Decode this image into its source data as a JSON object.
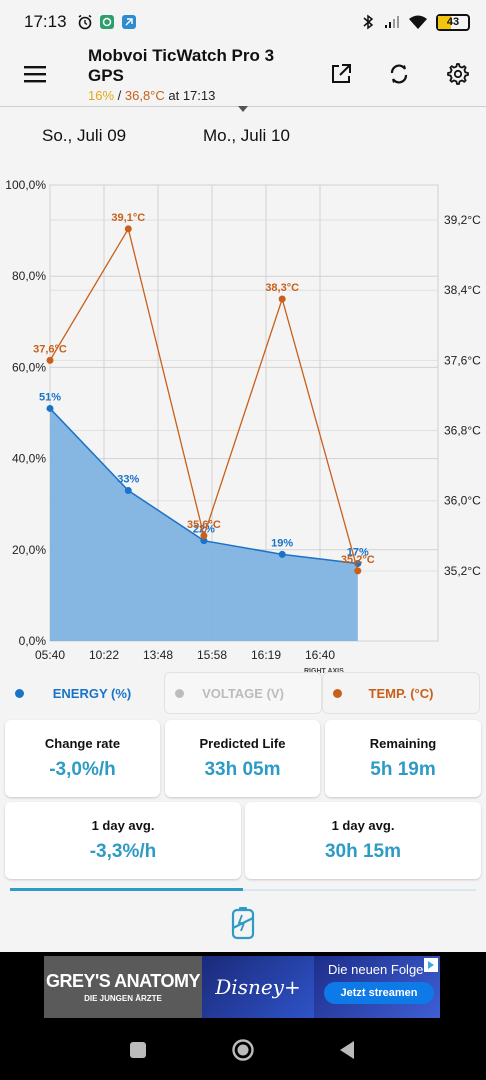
{
  "status_bar": {
    "time": "17:13",
    "battery": "43",
    "battery_fraction": 0.43
  },
  "app_bar": {
    "title": "Mobvoi TicWatch Pro 3 GPS",
    "subtitle_percent": "16%",
    "subtitle_sep": " / ",
    "subtitle_temp": "36,8°C",
    "subtitle_time": " at 17:13"
  },
  "dates": [
    "So., Juli 09",
    "Mo., Juli 10"
  ],
  "chart_data": {
    "type": "line",
    "x": [
      "05:40",
      "10:22",
      "13:48",
      "15:58",
      "16:19",
      "16:40"
    ],
    "left_axis": {
      "ticks": [
        "100,0%",
        "80,0%",
        "60,0%",
        "40,0%",
        "20,0%",
        "0,0%"
      ],
      "ylim": [
        0,
        100
      ]
    },
    "right_axis": {
      "ticks": [
        "39,2°C",
        "38,4°C",
        "37,6°C",
        "36,8°C",
        "36,0°C",
        "35,2°C"
      ],
      "ylim": [
        34.4,
        39.6
      ]
    },
    "series": [
      {
        "name": "ENERGY (%)",
        "style": "area",
        "color": "#1a73c8",
        "points": [
          {
            "x_index": 0.0,
            "value": 51,
            "label": "51%"
          },
          {
            "x_index": 1.45,
            "value": 33,
            "label": "33%"
          },
          {
            "x_index": 2.85,
            "value": 22,
            "label": "22%"
          },
          {
            "x_index": 4.3,
            "value": 19,
            "label": "19%"
          },
          {
            "x_index": 5.7,
            "value": 17,
            "label": "17%"
          }
        ]
      },
      {
        "name": "TEMP. (°C)",
        "style": "line",
        "color": "#c8601a",
        "points": [
          {
            "x_index": 0.0,
            "value": 37.6,
            "label": "37,6°C"
          },
          {
            "x_index": 1.45,
            "value": 39.1,
            "label": "39,1°C"
          },
          {
            "x_index": 2.85,
            "value": 35.6,
            "label": "35,6°C"
          },
          {
            "x_index": 4.3,
            "value": 38.3,
            "label": "38,3°C"
          },
          {
            "x_index": 5.7,
            "value": 35.2,
            "label": "35,2°C"
          }
        ]
      }
    ]
  },
  "legend": {
    "right_axis_note": "RIGHT AXIS",
    "items": [
      {
        "label": "ENERGY (%)",
        "color": "#1a73c8",
        "dot": "#1a73c8",
        "active": true
      },
      {
        "label": "VOLTAGE (V)",
        "color": "#bcbcbc",
        "dot": "#bcbcbc",
        "active": false
      },
      {
        "label": "TEMP. (°C)",
        "color": "#c8601a",
        "dot": "#c8601a",
        "active": true
      }
    ]
  },
  "stats": [
    {
      "label": "Change rate",
      "value": "-3,0%/h"
    },
    {
      "label": "Predicted Life",
      "value": "33h 05m"
    },
    {
      "label": "Remaining",
      "value": "5h 19m"
    },
    {
      "label": "1 day avg.",
      "value": "-3,3%/h"
    },
    {
      "label": "1 day avg.",
      "value": "30h 15m"
    }
  ],
  "ad": {
    "left_title": "GREY'S ANATOMY",
    "left_sub": "DIE JUNGEN ÄRZTE",
    "brand": "Disney+",
    "headline": "Die neuen Folge",
    "cta": "Jetzt streamen"
  },
  "icons": {
    "menu": "menu-icon",
    "open": "open-external-icon",
    "refresh": "refresh-icon",
    "settings": "gear-icon",
    "alarm": "alarm-icon",
    "bluetooth": "bluetooth-icon",
    "signal": "signal-icon",
    "wifi": "wifi-icon",
    "battery_tab": "battery-tab-icon",
    "nav_recents": "recents-icon",
    "nav_home": "home-icon",
    "nav_back": "back-icon"
  },
  "colors": {
    "accent": "#2d9bc5",
    "energy": "#1a73c8",
    "temp": "#c8601a"
  }
}
